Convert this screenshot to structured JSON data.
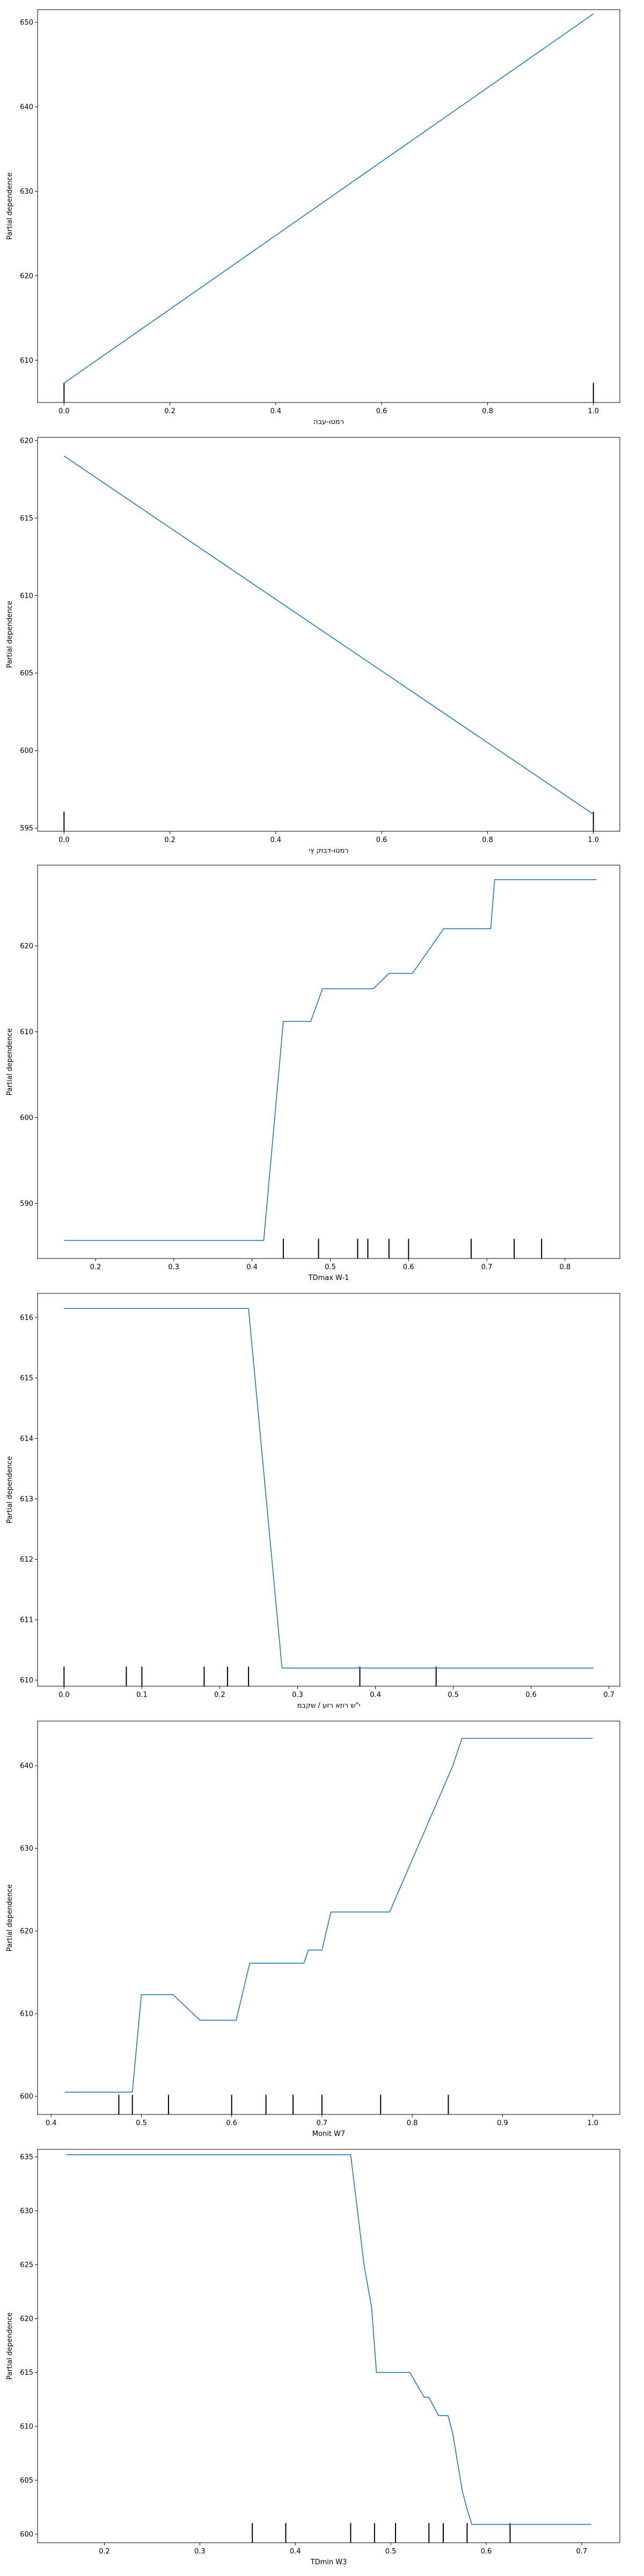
{
  "chart_data": [
    {
      "type": "line",
      "xlabel": "רמטו-עבה",
      "ylabel": "Partial dependence",
      "xlim": [
        -0.05,
        1.05
      ],
      "ylim": [
        605,
        651.5
      ],
      "xticks": [
        0.0,
        0.2,
        0.4,
        0.6,
        0.8,
        1.0
      ],
      "xtick_labels": [
        "0.0",
        "0.2",
        "0.4",
        "0.6",
        "0.8",
        "1.0"
      ],
      "yticks": [
        610,
        620,
        630,
        640,
        650
      ],
      "ytick_labels": [
        "610",
        "620",
        "630",
        "640",
        "650"
      ],
      "line_color": "#1f77b4",
      "series": [
        {
          "x": [
            0.0,
            1.0
          ],
          "y": [
            607.3,
            651.0
          ]
        }
      ],
      "rug": [
        0.0,
        1.0
      ]
    },
    {
      "type": "line",
      "xlabel": "רמטו-דבוק ץי",
      "ylabel": "Partial dependence",
      "xlim": [
        -0.05,
        1.05
      ],
      "ylim": [
        594.8,
        620.2
      ],
      "xticks": [
        0.0,
        0.2,
        0.4,
        0.6,
        0.8,
        1.0
      ],
      "xtick_labels": [
        "0.0",
        "0.2",
        "0.4",
        "0.6",
        "0.8",
        "1.0"
      ],
      "yticks": [
        595,
        600,
        605,
        610,
        615,
        620
      ],
      "ytick_labels": [
        "595",
        "600",
        "605",
        "610",
        "615",
        "620"
      ],
      "line_color": "#1f77b4",
      "series": [
        {
          "x": [
            0.0,
            1.0
          ],
          "y": [
            619.0,
            595.9
          ]
        }
      ],
      "rug": [
        0.0,
        1.0
      ]
    },
    {
      "type": "line",
      "xlabel": "TDmax W-1",
      "ylabel": "Partial dependence",
      "xlim": [
        0.126,
        0.87
      ],
      "ylim": [
        583.6,
        629.4
      ],
      "xticks": [
        0.2,
        0.3,
        0.4,
        0.5,
        0.6,
        0.7,
        0.8
      ],
      "xtick_labels": [
        "0.2",
        "0.3",
        "0.4",
        "0.5",
        "0.6",
        "0.7",
        "0.8"
      ],
      "yticks": [
        590,
        600,
        610,
        620
      ],
      "ytick_labels": [
        "590",
        "600",
        "610",
        "620"
      ],
      "line_color": "#1f77b4",
      "series": [
        {
          "x": [
            0.16,
            0.415,
            0.44,
            0.475,
            0.49,
            0.555,
            0.575,
            0.605,
            0.645,
            0.705,
            0.71,
            0.84
          ],
          "y": [
            585.7,
            585.7,
            611.2,
            611.2,
            615.0,
            615.0,
            616.8,
            616.8,
            622.0,
            622.0,
            627.7,
            627.7
          ]
        }
      ],
      "rug": [
        0.44,
        0.485,
        0.535,
        0.548,
        0.575,
        0.6,
        0.68,
        0.735,
        0.77
      ]
    },
    {
      "type": "line",
      "xlabel": "י\"ש רוזא רזע / שקבמ",
      "ylabel": "Partial dependence",
      "xlim": [
        -0.034,
        0.714
      ],
      "ylim": [
        609.9,
        616.4
      ],
      "xticks": [
        0.0,
        0.1,
        0.2,
        0.3,
        0.4,
        0.5,
        0.6,
        0.7
      ],
      "xtick_labels": [
        "0.0",
        "0.1",
        "0.2",
        "0.3",
        "0.4",
        "0.5",
        "0.6",
        "0.7"
      ],
      "yticks": [
        610,
        611,
        612,
        613,
        614,
        615,
        616
      ],
      "ytick_labels": [
        "610",
        "611",
        "612",
        "613",
        "614",
        "615",
        "616"
      ],
      "line_color": "#1f77b4",
      "series": [
        {
          "x": [
            0.0,
            0.237,
            0.28,
            0.68
          ],
          "y": [
            616.15,
            616.15,
            610.2,
            610.2
          ]
        }
      ],
      "rug": [
        0.0,
        0.08,
        0.1,
        0.18,
        0.21,
        0.237,
        0.38,
        0.478
      ]
    },
    {
      "type": "line",
      "xlabel": "Monit W7",
      "ylabel": "Partial dependence",
      "xlim": [
        0.385,
        1.03
      ],
      "ylim": [
        597.8,
        645.4
      ],
      "xticks": [
        0.4,
        0.5,
        0.6,
        0.7,
        0.8,
        0.9,
        1.0
      ],
      "xtick_labels": [
        "0.4",
        "0.5",
        "0.6",
        "0.7",
        "0.8",
        "0.9",
        "1.0"
      ],
      "yticks": [
        600,
        610,
        620,
        630,
        640
      ],
      "ytick_labels": [
        "600",
        "610",
        "620",
        "630",
        "640"
      ],
      "line_color": "#1f77b4",
      "series": [
        {
          "x": [
            0.415,
            0.49,
            0.5,
            0.535,
            0.565,
            0.605,
            0.62,
            0.68,
            0.685,
            0.7,
            0.71,
            0.775,
            0.845,
            0.855,
            1.0
          ],
          "y": [
            600.5,
            600.5,
            612.3,
            612.3,
            609.2,
            609.2,
            616.1,
            616.1,
            617.7,
            617.7,
            622.3,
            622.3,
            640.0,
            643.3,
            643.3
          ]
        }
      ],
      "rug": [
        0.475,
        0.49,
        0.53,
        0.6,
        0.638,
        0.668,
        0.7,
        0.765,
        0.84
      ]
    },
    {
      "type": "line",
      "xlabel": "TDmin W3",
      "ylabel": "Partial dependence",
      "xlim": [
        0.13,
        0.74
      ],
      "ylim": [
        599.2,
        635.7
      ],
      "xticks": [
        0.2,
        0.3,
        0.4,
        0.5,
        0.6,
        0.7
      ],
      "xtick_labels": [
        "0.2",
        "0.3",
        "0.4",
        "0.5",
        "0.6",
        "0.7"
      ],
      "yticks": [
        600,
        605,
        610,
        615,
        620,
        625,
        630,
        635
      ],
      "ytick_labels": [
        "600",
        "605",
        "610",
        "615",
        "620",
        "625",
        "630",
        "635"
      ],
      "line_color": "#1f77b4",
      "series": [
        {
          "x": [
            0.16,
            0.458,
            0.472,
            0.48,
            0.485,
            0.52,
            0.535,
            0.54,
            0.55,
            0.56,
            0.565,
            0.575,
            0.58,
            0.585,
            0.71
          ],
          "y": [
            635.2,
            635.2,
            625.0,
            621.0,
            615.0,
            615.0,
            612.7,
            612.7,
            611.0,
            611.0,
            609.3,
            604.0,
            602.3,
            600.9,
            600.9
          ]
        }
      ],
      "rug": [
        0.355,
        0.39,
        0.458,
        0.483,
        0.505,
        0.54,
        0.555,
        0.58,
        0.625
      ]
    }
  ]
}
